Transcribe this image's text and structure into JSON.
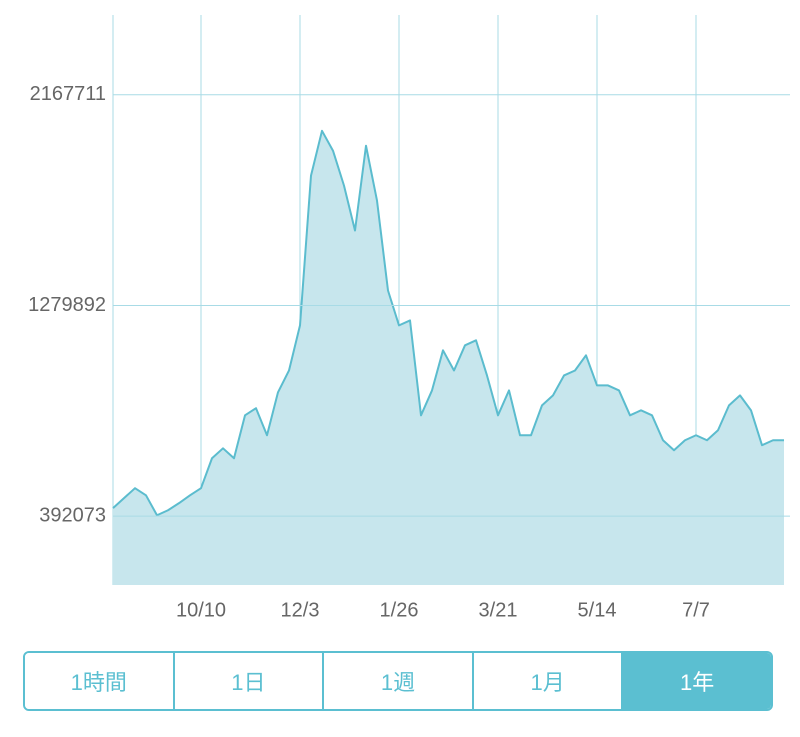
{
  "chart_data": {
    "type": "area",
    "categories": [
      null,
      null,
      null,
      null,
      null,
      null,
      null,
      null,
      "10/10",
      null,
      null,
      null,
      null,
      null,
      null,
      null,
      null,
      "12/3",
      null,
      null,
      null,
      null,
      null,
      null,
      null,
      null,
      "1/26",
      null,
      null,
      null,
      null,
      null,
      null,
      null,
      null,
      "3/21",
      null,
      null,
      null,
      null,
      null,
      null,
      null,
      null,
      "5/14",
      null,
      null,
      null,
      null,
      null,
      null,
      null,
      null,
      "7/7",
      null,
      null,
      null,
      null,
      null,
      null,
      null,
      null
    ],
    "values": [
      426000,
      468000,
      510000,
      480000,
      396000,
      417000,
      447000,
      480000,
      510000,
      636000,
      678000,
      636000,
      817000,
      847000,
      733000,
      914000,
      1006000,
      1196000,
      1827000,
      2016000,
      1932000,
      1785000,
      1596000,
      1953000,
      1722000,
      1343000,
      1196000,
      1217000,
      817000,
      922000,
      1091000,
      1006000,
      1112000,
      1133000,
      985000,
      817000,
      922000,
      733000,
      733000,
      859000,
      901000,
      985000,
      1006000,
      1070000,
      943000,
      943000,
      922000,
      817000,
      838000,
      817000,
      712000,
      670000,
      712000,
      733000,
      712000,
      754000,
      859000,
      901000,
      838000,
      691000,
      712000,
      712000
    ],
    "color": "#5bbcce",
    "fill_color": "#c7e6ed",
    "ylim": [
      102000,
      2504000
    ],
    "yticks": [
      392073,
      1279892,
      2167711
    ],
    "grid": true
  },
  "tabs": {
    "items": [
      "1時間",
      "1日",
      "1週",
      "1月",
      "1年"
    ],
    "selected": "1年"
  }
}
